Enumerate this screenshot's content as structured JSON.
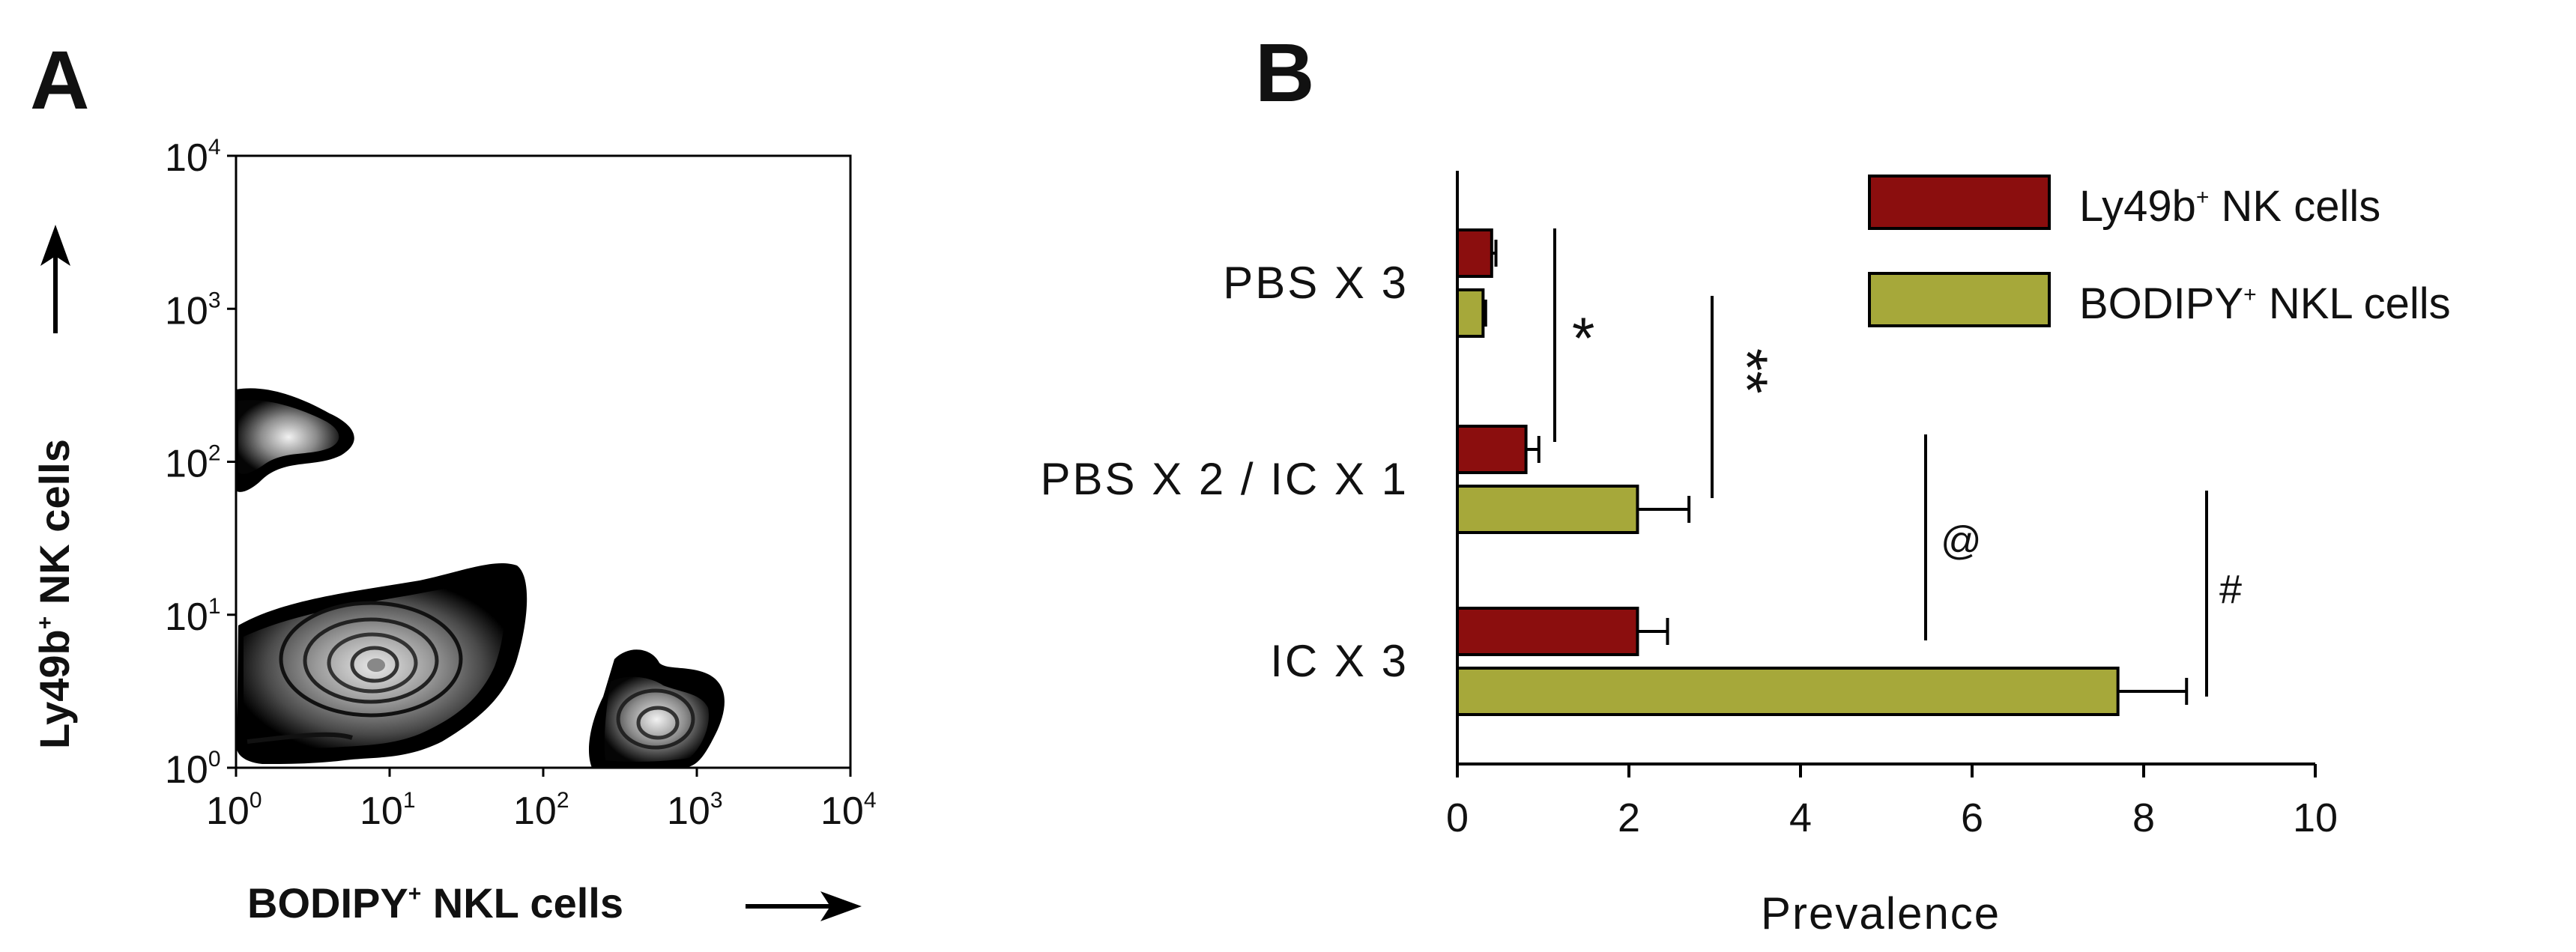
{
  "panel_a": {
    "letter": "A",
    "x_axis_label": "BODIPY",
    "x_axis_label_sup": "+",
    "x_axis_label_rest": " NKL cells",
    "y_axis_label": "Ly49b",
    "y_axis_label_sup": "+",
    "y_axis_label_rest": " NK cells",
    "arrow_glyph": "→"
  },
  "panel_b": {
    "letter": "B",
    "legend": [
      {
        "label": "Ly49b",
        "sup": "+",
        "rest": " NK cells",
        "color": "#8b0e0e"
      },
      {
        "label": "BODIPY",
        "sup": "+",
        "rest": " NKL cells",
        "color": "#a6a83a"
      }
    ],
    "significance": [
      "*",
      "**",
      "@",
      "#"
    ]
  },
  "chart_data": [
    {
      "type": "contour",
      "panel": "A",
      "x_scale": "log",
      "y_scale": "log",
      "xlim": [
        1,
        10000
      ],
      "ylim": [
        1,
        10000
      ],
      "x_ticks": [
        {
          "base": "10",
          "exp": "0"
        },
        {
          "base": "10",
          "exp": "1"
        },
        {
          "base": "10",
          "exp": "2"
        },
        {
          "base": "10",
          "exp": "3"
        },
        {
          "base": "10",
          "exp": "4"
        }
      ],
      "y_ticks": [
        {
          "base": "10",
          "exp": "0"
        },
        {
          "base": "10",
          "exp": "1"
        },
        {
          "base": "10",
          "exp": "2"
        },
        {
          "base": "10",
          "exp": "3"
        },
        {
          "base": "10",
          "exp": "4"
        }
      ],
      "populations": [
        {
          "x": 1.5,
          "y": 200
        },
        {
          "x": 8,
          "y": 5
        },
        {
          "x": 600,
          "y": 2
        }
      ]
    },
    {
      "type": "bar",
      "orientation": "horizontal",
      "panel": "B",
      "categories": [
        "PBS X 3",
        "PBS X 2 / IC X 1",
        "IC X 3"
      ],
      "series": [
        {
          "name": "Ly49b+ NK cells",
          "values": [
            0.4,
            0.8,
            2.1
          ],
          "errors": [
            0.05,
            0.15,
            0.35
          ],
          "color": "#8b0e0e"
        },
        {
          "name": "BODIPY+ NKL cells",
          "values": [
            0.3,
            2.1,
            7.7
          ],
          "errors": [
            0.03,
            0.6,
            0.8
          ],
          "color": "#a6a83a"
        }
      ],
      "xlabel": "Prevalence",
      "xlim": [
        0,
        10
      ],
      "x_ticks": [
        0,
        2,
        4,
        6,
        8,
        10
      ],
      "legend_position": "top-right"
    }
  ]
}
